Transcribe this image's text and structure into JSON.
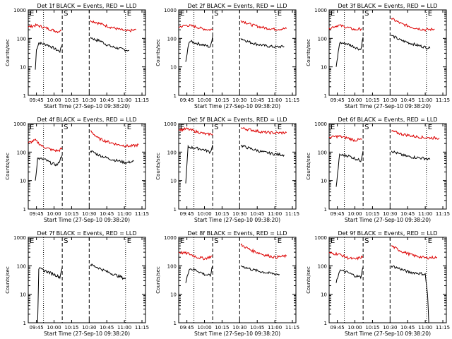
{
  "panel_titles": [
    "Det 1f BLACK = Events, RED = LLD",
    "Det 2f BLACK = Events, RED = LLD",
    "Det 3f BLACK = Events, RED = LLD",
    "Det 4f BLACK = Events, RED = LLD",
    "Det 5f BLACK = Events, RED = LLD",
    "Det 6f BLACK = Events, RED = LLD",
    "Det 7f BLACK = Events, RED = LLD",
    "Det 8f BLACK = Events, RED = LLD",
    "Det 9f BLACK = Events, RED = LLD"
  ],
  "xlabel": "Start Time (27-Sep-10 09:38:20)",
  "ylabel": "Counts/sec",
  "colors": {
    "events": "#000000",
    "lld": "#dd0000",
    "axes": "#000000"
  },
  "chart_data": {
    "type": "line",
    "layout": "3x3 grid of panels",
    "x_unit": "time of day",
    "x_ticks": [
      "09:45",
      "10:00",
      "10:15",
      "10:30",
      "10:45",
      "11:00",
      "11:15"
    ],
    "y_scale": "log",
    "y_ticks": [
      "1",
      "10",
      "100",
      "1000"
    ],
    "ylim": [
      1,
      1000
    ],
    "xlim": [
      "09:38",
      "11:18"
    ],
    "grid": false,
    "markers": [
      {
        "label": "E",
        "time": "09:38",
        "style": "none"
      },
      {
        "label": "",
        "time": "09:51",
        "style": "dotted"
      },
      {
        "label": "S",
        "time": "10:07",
        "style": "dashed"
      },
      {
        "label": "",
        "time": "10:30",
        "style": "dashed"
      },
      {
        "label": "E",
        "time": "11:01",
        "style": "dotted"
      }
    ],
    "series": [
      {
        "name": "BLACK = Events",
        "panel": 1,
        "color": "#000000",
        "segments": [
          {
            "x": [
              "09:44",
              "09:45",
              "09:47",
              "09:50",
              "09:54",
              "09:58",
              "10:02",
              "10:05",
              "10:07"
            ],
            "y": [
              8,
              40,
              70,
              65,
              60,
              50,
              40,
              35,
              60
            ]
          },
          {
            "x": [
              "10:31",
              "10:35",
              "10:40",
              "10:45",
              "10:50",
              "10:55",
              "11:00",
              "11:04"
            ],
            "y": [
              110,
              90,
              80,
              60,
              50,
              45,
              40,
              38
            ]
          }
        ]
      },
      {
        "name": "RED = LLD",
        "panel": 1,
        "color": "#dd0000",
        "segments": [
          {
            "x": [
              "09:38",
              "09:45",
              "09:52",
              "09:58",
              "10:03",
              "10:06"
            ],
            "y": [
              250,
              290,
              240,
              200,
              175,
              185
            ]
          },
          {
            "x": [
              "10:31",
              "10:40",
              "10:48",
              "10:55",
              "11:02",
              "11:10"
            ],
            "y": [
              430,
              320,
              250,
              210,
              180,
              200
            ]
          }
        ]
      },
      {
        "name": "BLACK = Events",
        "panel": 2,
        "color": "#000000",
        "segments": [
          {
            "x": [
              "09:44",
              "09:47",
              "09:52",
              "09:58",
              "10:02",
              "10:05",
              "10:07"
            ],
            "y": [
              15,
              80,
              70,
              60,
              55,
              48,
              120
            ]
          },
          {
            "x": [
              "10:31",
              "10:38",
              "10:45",
              "10:52",
              "11:00",
              "11:08"
            ],
            "y": [
              100,
              75,
              62,
              55,
              50,
              52
            ]
          }
        ]
      },
      {
        "name": "RED = LLD",
        "panel": 2,
        "color": "#dd0000",
        "segments": [
          {
            "x": [
              "09:38",
              "09:45",
              "09:52",
              "09:58",
              "10:04",
              "10:07"
            ],
            "y": [
              250,
              290,
              260,
              220,
              200,
              210
            ]
          },
          {
            "x": [
              "10:31",
              "10:40",
              "10:50",
              "11:00",
              "11:10"
            ],
            "y": [
              430,
              300,
              240,
              210,
              220
            ]
          }
        ]
      },
      {
        "name": "BLACK = Events",
        "panel": 3,
        "color": "#000000",
        "segments": [
          {
            "x": [
              "09:44",
              "09:47",
              "09:53",
              "10:00",
              "10:05",
              "10:07"
            ],
            "y": [
              10,
              70,
              65,
              50,
              40,
              110
            ]
          },
          {
            "x": [
              "10:31",
              "10:38",
              "10:46",
              "10:55",
              "11:04"
            ],
            "y": [
              130,
              90,
              70,
              55,
              45
            ]
          }
        ]
      },
      {
        "name": "RED = LLD",
        "panel": 3,
        "color": "#dd0000",
        "segments": [
          {
            "x": [
              "09:38",
              "09:46",
              "09:54",
              "10:00",
              "10:06"
            ],
            "y": [
              230,
              290,
              240,
              200,
              220
            ]
          },
          {
            "x": [
              "10:31",
              "10:40",
              "10:50",
              "11:00",
              "11:08"
            ],
            "y": [
              500,
              320,
              240,
              200,
              210
            ]
          }
        ]
      },
      {
        "name": "BLACK = Events",
        "panel": 4,
        "color": "#000000",
        "segments": [
          {
            "x": [
              "09:44",
              "09:46",
              "09:52",
              "09:58",
              "10:03",
              "10:07"
            ],
            "y": [
              10,
              60,
              55,
              40,
              35,
              80
            ]
          },
          {
            "x": [
              "10:31",
              "10:38",
              "10:46",
              "10:54",
              "11:02",
              "11:08"
            ],
            "y": [
              110,
              80,
              60,
              50,
              42,
              48
            ]
          }
        ]
      },
      {
        "name": "RED = LLD",
        "panel": 4,
        "color": "#dd0000",
        "segments": [
          {
            "x": [
              "09:38",
              "09:44",
              "09:50",
              "09:58",
              "10:04",
              "10:07"
            ],
            "y": [
              210,
              260,
              160,
              120,
              110,
              140
            ]
          },
          {
            "x": [
              "10:31",
              "10:38",
              "10:46",
              "10:55",
              "11:05",
              "11:12"
            ],
            "y": [
              550,
              300,
              230,
              180,
              160,
              180
            ]
          }
        ]
      },
      {
        "name": "BLACK = Events",
        "panel": 5,
        "color": "#000000",
        "segments": [
          {
            "x": [
              "09:44",
              "09:46",
              "09:52",
              "10:00",
              "10:05",
              "10:07"
            ],
            "y": [
              8,
              150,
              140,
              120,
              100,
              180
            ]
          },
          {
            "x": [
              "10:31",
              "10:40",
              "10:50",
              "11:00",
              "11:08"
            ],
            "y": [
              170,
              130,
              100,
              85,
              80
            ]
          }
        ]
      },
      {
        "name": "RED = LLD",
        "panel": 5,
        "color": "#dd0000",
        "segments": [
          {
            "x": [
              "09:38",
              "09:45",
              "09:55",
              "10:02",
              "10:07"
            ],
            "y": [
              600,
              650,
              500,
              420,
              440
            ]
          },
          {
            "x": [
              "10:31",
              "10:40",
              "10:50",
              "11:00",
              "11:10"
            ],
            "y": [
              700,
              600,
              500,
              470,
              480
            ]
          }
        ]
      },
      {
        "name": "BLACK = Events",
        "panel": 6,
        "color": "#000000",
        "segments": [
          {
            "x": [
              "09:44",
              "09:47",
              "09:54",
              "10:00",
              "10:05",
              "10:07"
            ],
            "y": [
              6,
              80,
              75,
              60,
              50,
              110
            ]
          },
          {
            "x": [
              "10:31",
              "10:38",
              "10:45",
              "10:52",
              "11:00",
              "11:04"
            ],
            "y": [
              110,
              85,
              70,
              65,
              60,
              55
            ]
          }
        ]
      },
      {
        "name": "RED = LLD",
        "panel": 6,
        "color": "#dd0000",
        "segments": [
          {
            "x": [
              "09:38",
              "09:46",
              "09:54",
              "10:00",
              "10:06"
            ],
            "y": [
              330,
              360,
              310,
              260,
              280
            ]
          },
          {
            "x": [
              "10:31",
              "10:40",
              "10:50",
              "11:00",
              "11:12"
            ],
            "y": [
              550,
              430,
              360,
              320,
              310
            ]
          }
        ]
      },
      {
        "name": "BLACK = Events",
        "panel": 7,
        "color": "#000000",
        "segments": [
          {
            "x": [
              "09:45",
              "09:46",
              "09:47",
              "09:53",
              "10:00",
              "10:05",
              "10:07"
            ],
            "y": [
              1,
              1,
              80,
              65,
              50,
              40,
              90
            ]
          },
          {
            "x": [
              "10:31",
              "10:38",
              "10:46",
              "10:54",
              "11:01"
            ],
            "y": [
              110,
              85,
              60,
              45,
              35
            ]
          }
        ]
      },
      {
        "name": "RED = LLD",
        "panel": 7,
        "color": "#dd0000",
        "segments": []
      },
      {
        "name": "BLACK = Events",
        "panel": 8,
        "color": "#000000",
        "segments": [
          {
            "x": [
              "09:44",
              "09:47",
              "09:53",
              "10:00",
              "10:05",
              "10:07"
            ],
            "y": [
              25,
              80,
              70,
              50,
              45,
              100
            ]
          },
          {
            "x": [
              "10:31",
              "10:38",
              "10:46",
              "10:55",
              "11:04"
            ],
            "y": [
              100,
              80,
              65,
              55,
              50
            ]
          }
        ]
      },
      {
        "name": "RED = LLD",
        "panel": 8,
        "color": "#dd0000",
        "segments": [
          {
            "x": [
              "09:38",
              "09:46",
              "09:54",
              "10:00",
              "10:07"
            ],
            "y": [
              300,
              270,
              200,
              180,
              220
            ]
          },
          {
            "x": [
              "10:31",
              "10:40",
              "10:50",
              "11:00",
              "11:10"
            ],
            "y": [
              550,
              350,
              250,
              200,
              220
            ]
          }
        ]
      },
      {
        "name": "BLACK = Events",
        "panel": 9,
        "color": "#000000",
        "segments": [
          {
            "x": [
              "09:44",
              "09:47",
              "09:53",
              "10:00",
              "10:05",
              "10:07"
            ],
            "y": [
              25,
              70,
              60,
              45,
              40,
              90
            ]
          },
          {
            "x": [
              "10:31",
              "10:38",
              "10:46",
              "10:54",
              "11:00",
              "11:02",
              "11:03"
            ],
            "y": [
              100,
              80,
              60,
              55,
              50,
              10,
              1
            ]
          }
        ]
      },
      {
        "name": "RED = LLD",
        "panel": 9,
        "color": "#dd0000",
        "segments": [
          {
            "x": [
              "09:38",
              "09:46",
              "09:54",
              "10:00",
              "10:07"
            ],
            "y": [
              280,
              260,
              190,
              170,
              210
            ]
          },
          {
            "x": [
              "10:31",
              "10:40",
              "10:50",
              "11:00",
              "11:10"
            ],
            "y": [
              500,
              320,
              230,
              190,
              200
            ]
          }
        ]
      }
    ]
  }
}
